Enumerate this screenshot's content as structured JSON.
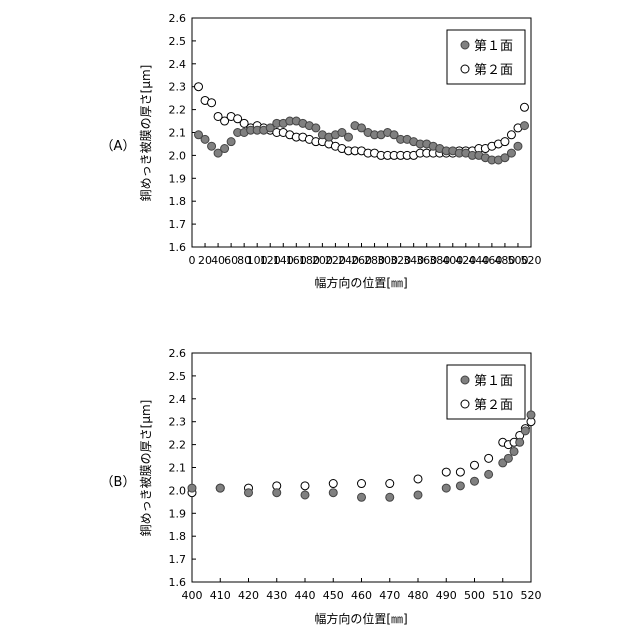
{
  "chart_data": [
    {
      "type": "scatter",
      "panel_label": "（A）",
      "xlabel": "幅方向の位置[㎜]",
      "ylabel": "銅めっき被膜の厚さ[μm]",
      "xlim": [
        0,
        520
      ],
      "ylim": [
        1.6,
        2.6
      ],
      "xticks": [
        "0",
        "20",
        "40",
        "60",
        "80",
        "100",
        "120",
        "140",
        "160",
        "180",
        "200",
        "220",
        "240",
        "260",
        "280",
        "300",
        "320",
        "340",
        "360",
        "380",
        "400",
        "420",
        "440",
        "460",
        "480",
        "500",
        "520"
      ],
      "yticks": [
        "1.6",
        "1.7",
        "1.8",
        "1.9",
        "2.0",
        "2.1",
        "2.2",
        "2.3",
        "2.4",
        "2.5",
        "2.6"
      ],
      "legend_position": "top-right",
      "series": [
        {
          "name": "第１面",
          "marker": "filled",
          "color": "#808080",
          "x": [
            10,
            20,
            30,
            40,
            50,
            60,
            70,
            80,
            90,
            100,
            110,
            120,
            130,
            140,
            150,
            160,
            170,
            180,
            190,
            200,
            210,
            220,
            230,
            240,
            250,
            260,
            270,
            280,
            290,
            300,
            310,
            320,
            330,
            340,
            350,
            360,
            370,
            380,
            390,
            400,
            410,
            420,
            430,
            440,
            450,
            460,
            470,
            480,
            490,
            500,
            510
          ],
          "y": [
            2.09,
            2.07,
            2.04,
            2.01,
            2.03,
            2.06,
            2.1,
            2.1,
            2.11,
            2.11,
            2.11,
            2.12,
            2.14,
            2.14,
            2.15,
            2.15,
            2.14,
            2.13,
            2.12,
            2.09,
            2.08,
            2.09,
            2.1,
            2.08,
            2.13,
            2.12,
            2.1,
            2.09,
            2.09,
            2.1,
            2.09,
            2.07,
            2.07,
            2.06,
            2.05,
            2.05,
            2.04,
            2.03,
            2.02,
            2.02,
            2.01,
            2.01,
            2.0,
            2.0,
            1.99,
            1.98,
            1.98,
            1.99,
            2.01,
            2.04,
            2.13
          ]
        },
        {
          "name": "第２面",
          "marker": "open",
          "color": "#ffffff",
          "x": [
            10,
            20,
            30,
            40,
            50,
            60,
            70,
            80,
            90,
            100,
            110,
            120,
            130,
            140,
            150,
            160,
            170,
            180,
            190,
            200,
            210,
            220,
            230,
            240,
            250,
            260,
            270,
            280,
            290,
            300,
            310,
            320,
            330,
            340,
            350,
            360,
            370,
            380,
            390,
            400,
            410,
            420,
            430,
            440,
            450,
            460,
            470,
            480,
            490,
            500,
            510
          ],
          "y": [
            2.3,
            2.24,
            2.23,
            2.17,
            2.15,
            2.17,
            2.16,
            2.14,
            2.12,
            2.13,
            2.12,
            2.11,
            2.1,
            2.1,
            2.09,
            2.08,
            2.08,
            2.07,
            2.06,
            2.06,
            2.05,
            2.04,
            2.03,
            2.02,
            2.02,
            2.02,
            2.01,
            2.01,
            2.0,
            2.0,
            2.0,
            2.0,
            2.0,
            2.0,
            2.01,
            2.01,
            2.01,
            2.01,
            2.01,
            2.01,
            2.02,
            2.02,
            2.02,
            2.03,
            2.03,
            2.04,
            2.05,
            2.06,
            2.09,
            2.12,
            2.21
          ]
        }
      ]
    },
    {
      "type": "scatter",
      "panel_label": "（B）",
      "xlabel": "幅方向の位置[㎜]",
      "ylabel": "銅めっき被膜の厚さ[μm]",
      "xlim": [
        400,
        520
      ],
      "ylim": [
        1.6,
        2.6
      ],
      "xticks": [
        "400",
        "410",
        "420",
        "430",
        "440",
        "450",
        "460",
        "470",
        "480",
        "490",
        "500",
        "510",
        "520"
      ],
      "yticks": [
        "1.6",
        "1.7",
        "1.8",
        "1.9",
        "2.0",
        "2.1",
        "2.2",
        "2.3",
        "2.4",
        "2.5",
        "2.6"
      ],
      "legend_position": "top-right",
      "series": [
        {
          "name": "第１面",
          "marker": "filled",
          "color": "#808080",
          "x": [
            400,
            410,
            420,
            430,
            440,
            450,
            460,
            470,
            480,
            490,
            495,
            500,
            505,
            510,
            512,
            514,
            516,
            518,
            520
          ],
          "y": [
            2.01,
            2.01,
            1.99,
            1.99,
            1.98,
            1.99,
            1.97,
            1.97,
            1.98,
            2.01,
            2.02,
            2.04,
            2.07,
            2.12,
            2.14,
            2.17,
            2.21,
            2.26,
            2.33
          ]
        },
        {
          "name": "第２面",
          "marker": "open",
          "color": "#ffffff",
          "x": [
            400,
            410,
            420,
            430,
            440,
            450,
            460,
            470,
            480,
            490,
            495,
            500,
            505,
            510,
            512,
            514,
            516,
            518,
            520
          ],
          "y": [
            1.99,
            2.01,
            2.01,
            2.02,
            2.02,
            2.03,
            2.03,
            2.03,
            2.05,
            2.08,
            2.08,
            2.11,
            2.14,
            2.21,
            2.2,
            2.21,
            2.24,
            2.27,
            2.3
          ]
        }
      ]
    }
  ]
}
